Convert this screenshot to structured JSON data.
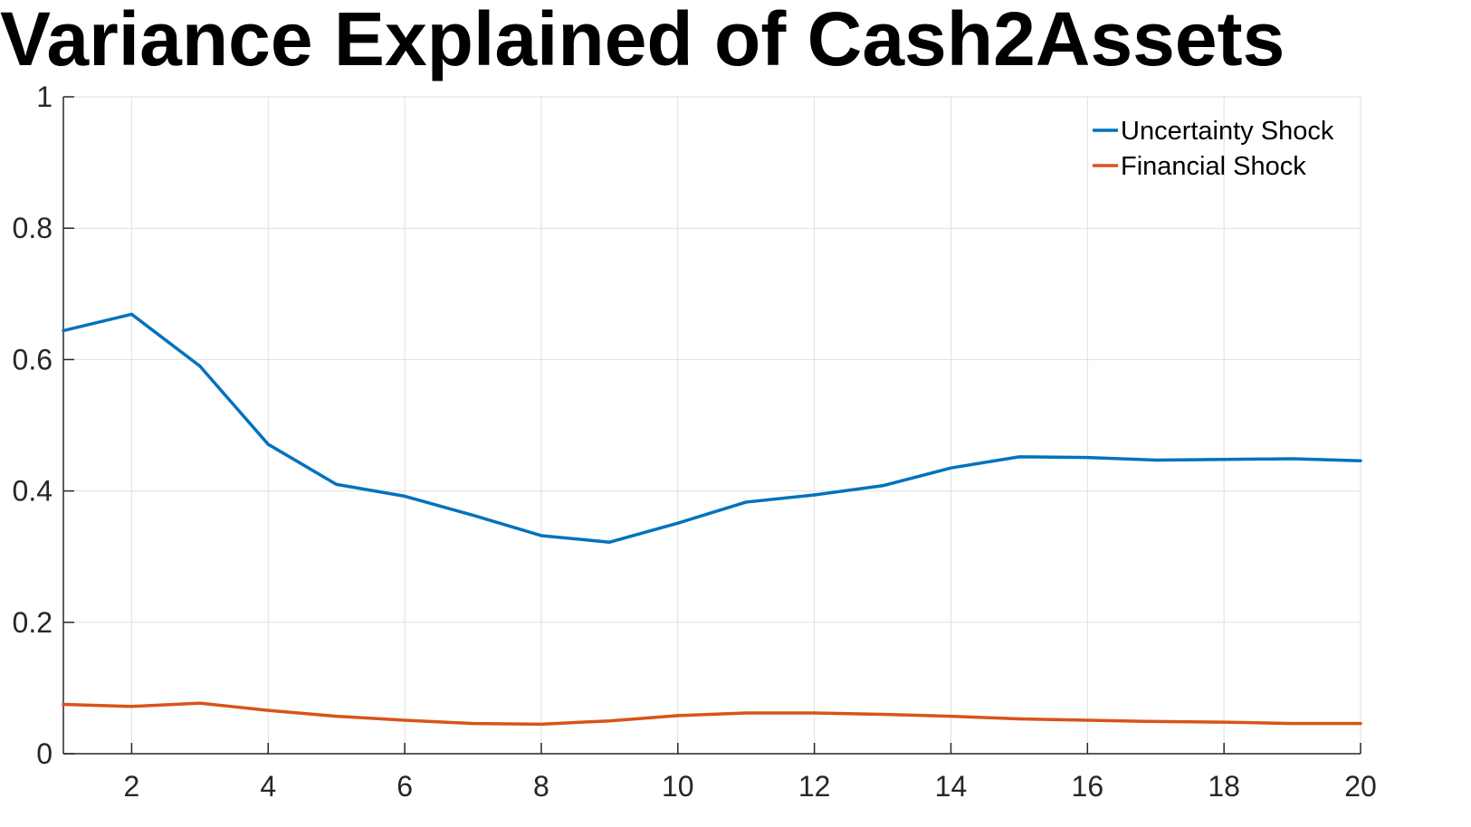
{
  "chart_data": {
    "type": "line",
    "title": "Variance Explained of Cash2Assets",
    "xlabel": "",
    "ylabel": "",
    "xlim": [
      1,
      20
    ],
    "ylim": [
      0,
      1
    ],
    "x": [
      1,
      2,
      3,
      4,
      5,
      6,
      7,
      8,
      9,
      10,
      11,
      12,
      13,
      14,
      15,
      16,
      17,
      18,
      19,
      20
    ],
    "xticks": [
      2,
      4,
      6,
      8,
      10,
      12,
      14,
      16,
      18,
      20
    ],
    "yticks": [
      0,
      0.2,
      0.4,
      0.6,
      0.8,
      1
    ],
    "xtick_labels": [
      "2",
      "4",
      "6",
      "8",
      "10",
      "12",
      "14",
      "16",
      "18",
      "20"
    ],
    "ytick_labels": [
      "0",
      "0.2",
      "0.4",
      "0.6",
      "0.8",
      "1"
    ],
    "grid": true,
    "legend_position": "top-right",
    "series": [
      {
        "name": "Uncertainty Shock",
        "color": "#0072BD",
        "values": [
          0.644,
          0.669,
          0.59,
          0.471,
          0.41,
          0.392,
          0.363,
          0.332,
          0.322,
          0.351,
          0.383,
          0.394,
          0.408,
          0.435,
          0.452,
          0.451,
          0.447,
          0.448,
          0.449,
          0.446
        ]
      },
      {
        "name": "Financial Shock",
        "color": "#D95319",
        "values": [
          0.075,
          0.072,
          0.077,
          0.066,
          0.057,
          0.051,
          0.046,
          0.045,
          0.05,
          0.058,
          0.062,
          0.062,
          0.06,
          0.057,
          0.053,
          0.051,
          0.049,
          0.048,
          0.046,
          0.046
        ]
      }
    ]
  }
}
